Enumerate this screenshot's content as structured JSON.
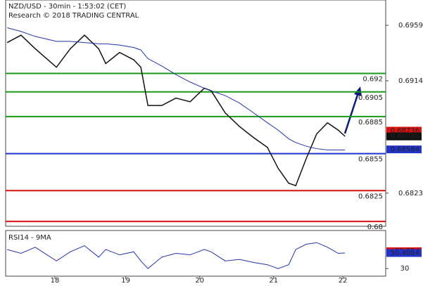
{
  "chart_data": {
    "type": "line",
    "title": "NZD/USD - 30min - 1:53:02 (CET)",
    "subtitle": "Research © 2018 TRADING CENTRAL",
    "x": [
      0.5,
      5,
      9.6,
      16.5,
      21,
      25.6,
      30.2,
      32.5,
      37,
      41.6,
      43.9,
      46.2,
      50.7,
      55.3,
      59.9,
      64.5,
      66.7,
      71.3,
      75.9,
      80.5,
      85,
      88.5,
      91.9,
      94.2,
      97.6,
      101,
      104.5,
      108,
      110.2
    ],
    "series": [
      {
        "color": "#111111",
        "values": [
          0.6945,
          0.6951,
          0.694,
          0.6925,
          0.694,
          0.6951,
          0.694,
          0.6928,
          0.6937,
          0.6931,
          0.6925,
          0.6894,
          0.6894,
          0.69,
          0.6897,
          0.6908,
          0.6906,
          0.6888,
          0.6877,
          0.6868,
          0.686,
          0.6843,
          0.6831,
          0.6829,
          0.6851,
          0.6871,
          0.688,
          0.6874,
          0.6869
        ]
      },
      {
        "color": "#2233aa",
        "values": [
          0.6957,
          0.6954,
          0.695,
          0.6946,
          0.6946,
          0.6945,
          0.6944,
          0.6944,
          0.6943,
          0.6941,
          0.6939,
          0.6932,
          0.6926,
          0.6919,
          0.6913,
          0.6908,
          0.6906,
          0.6902,
          0.6896,
          0.6888,
          0.688,
          0.6874,
          0.6867,
          0.6864,
          0.6861,
          0.6859,
          0.6858,
          0.6858,
          0.6858
        ]
      }
    ],
    "xlim": [
      0,
      123.4
    ],
    "xticks": [
      {
        "value": 16,
        "label": "18"
      },
      {
        "value": 39,
        "label": "19"
      },
      {
        "value": 63,
        "label": "20"
      },
      {
        "value": 87,
        "label": "21"
      },
      {
        "value": 109.5,
        "label": "22"
      }
    ],
    "ylim": [
      0.67961,
      0.69795
    ],
    "yticks": [
      0.6959,
      0.6914,
      0.6823
    ],
    "levels": [
      {
        "value": 0.692,
        "color": "#1a9a1a"
      },
      {
        "value": 0.6905,
        "color": "#1a9a1a"
      },
      {
        "value": 0.6885,
        "color": "#1a9a1a"
      },
      {
        "value": 0.6855,
        "color": "#2233cc"
      },
      {
        "value": 0.6825,
        "color": "#dd1111"
      },
      {
        "value": 0.68,
        "color": "#dd1111"
      }
    ],
    "markers": [
      {
        "value": 0.68736,
        "color": "#dd1111"
      },
      {
        "value": 0.68689,
        "color": "#111111"
      },
      {
        "value": 0.68584,
        "color": "#2233cc"
      }
    ],
    "rsi": {
      "label": "RSI14 - 9MA",
      "ylim": [
        20,
        80
      ],
      "yticks": [
        30
      ],
      "values": [
        55,
        50,
        58,
        40,
        52,
        60,
        45,
        55,
        48,
        52,
        40,
        30,
        45,
        50,
        48,
        55,
        52,
        40,
        42,
        38,
        35,
        30,
        35,
        55,
        62,
        64,
        58,
        50,
        50.4084
      ],
      "color": "#2233aa",
      "markers": [
        {
          "value": 52.754,
          "color": "#dd1111"
        },
        {
          "value": 50.4084,
          "color": "#2233cc"
        }
      ]
    }
  }
}
